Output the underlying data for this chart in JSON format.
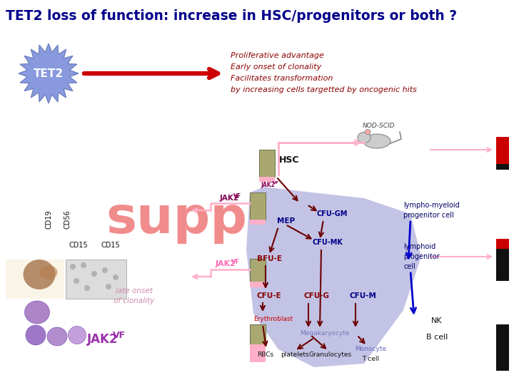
{
  "title": "TET2 loss of function: increase in HSC/progenitors or both ?",
  "title_color": "#00008B",
  "title_fontsize": 13.5,
  "bg_color": "#ffffff",
  "tet2_label": "TET2",
  "arrow_text_lines": [
    "Proliferative advantage",
    "Early onset of clonality",
    "Facilitates transformation",
    "by increasing cells targetted by oncogenic hits"
  ],
  "arrow_text_color": "#8B0000",
  "hsc_label": "HSC",
  "nod_scid_label": "NOD-SCID",
  "lympho_myeloid_label": "lympho-myeloid\nprogenitor cell",
  "lymphoid_label": "lymphoid\nprogenitor\ncell",
  "cd19_label": "CD19",
  "cd56_label": "CD56",
  "cd15_label1": "CD15",
  "cd15_label2": "CD15",
  "mep_label": "MEP",
  "bfu_e_label": "BFU-E",
  "cfu_e_label": "CFU-E",
  "cfu_g_label": "CFU-G",
  "cfu_m_label": "CFU-M",
  "cfu_gm_label": "CFU-GM",
  "cfu_mk_label": "CFU-MK",
  "erythroblast_label": "Erythroblast",
  "megakaryocyte_label": "Megakaryocyte",
  "rbc_label": "RBCs",
  "platelets_label": "platelets",
  "granulocytes_label": "Granulocytes",
  "monocyte_label": "Monocyte",
  "nk_label": "NK",
  "bcell_label": "B cell",
  "tcell_label": "T cell",
  "late_onset_label": "late onset\nof clonality",
  "red_color": "#CC0000",
  "dark_red": "#6B0000",
  "pink_color": "#FF69B4",
  "blue_color": "#0000CC",
  "blob_color": "#8888CC",
  "jak2_color": "#880055",
  "jak2_bottom_color": "#9933AA",
  "supp_color": "#F08080",
  "box_tan": "#A8A870",
  "box_pink": "#FFB0C8"
}
